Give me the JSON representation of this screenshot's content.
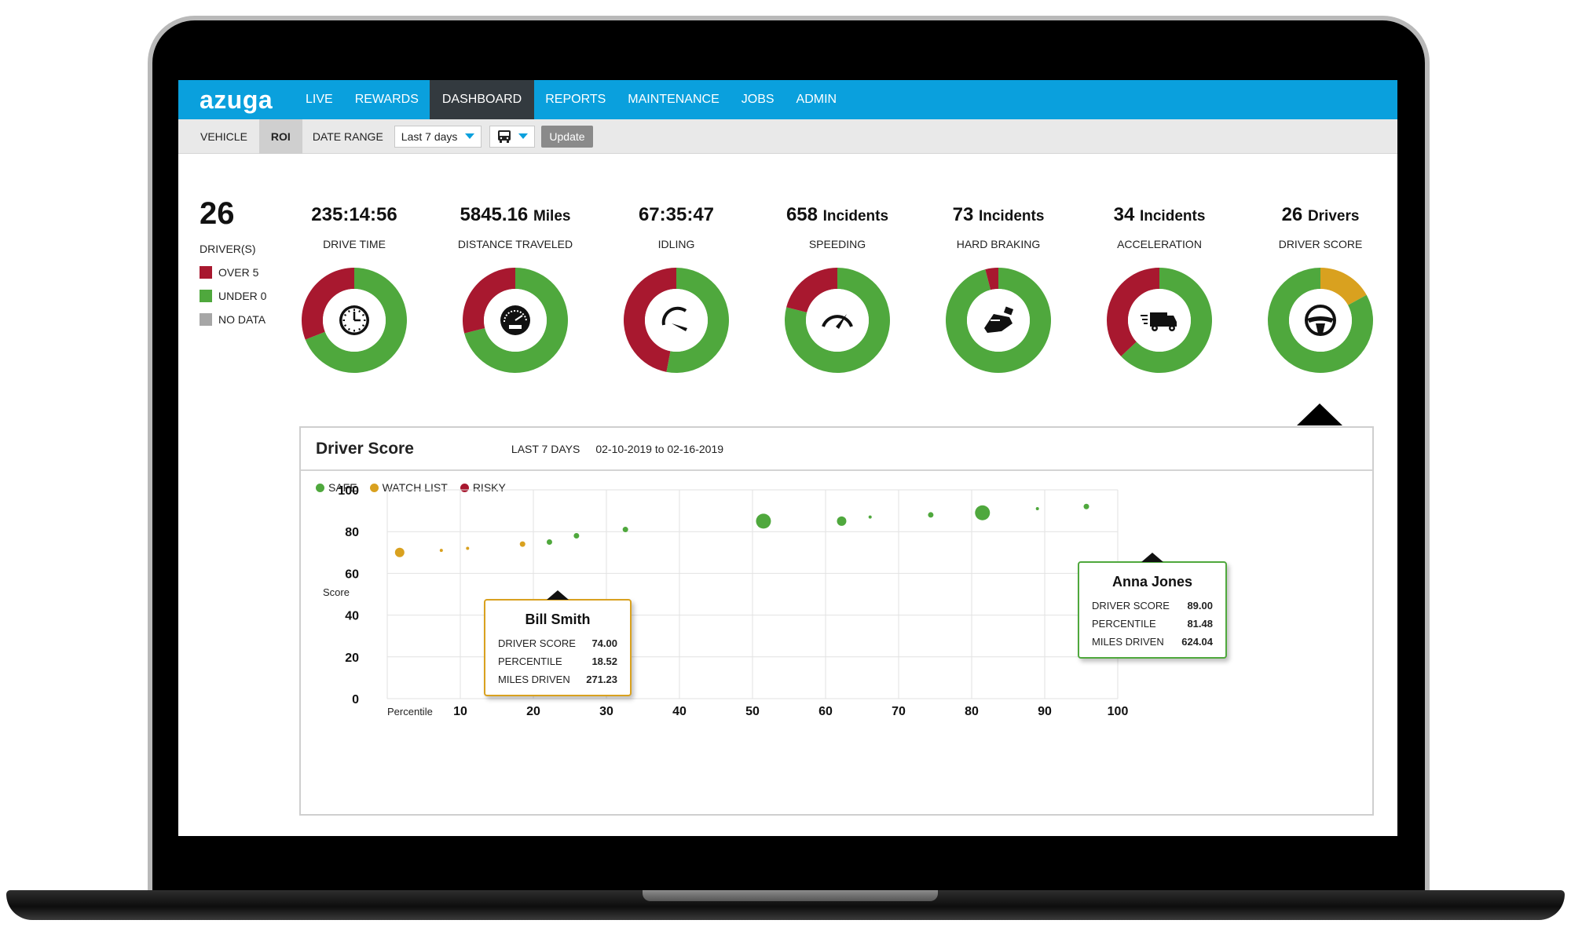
{
  "app": {
    "logo": "azuga"
  },
  "nav": {
    "items": [
      "LIVE",
      "REWARDS",
      "DASHBOARD",
      "REPORTS",
      "MAINTENANCE",
      "JOBS",
      "ADMIN"
    ],
    "active": "DASHBOARD"
  },
  "subnav": {
    "vehicle": "VEHICLE",
    "roi": "ROI",
    "date_range_label": "DATE RANGE",
    "date_range_value": "Last 7 days",
    "update": "Update"
  },
  "summary": {
    "drivers_count": "26",
    "drivers_label": "DRIVER(S)",
    "legend": [
      {
        "label": "OVER 5",
        "color": "#a8182f"
      },
      {
        "label": "UNDER 0",
        "color": "#4fa83d"
      },
      {
        "label": "NO DATA",
        "color": "#a6a6a6"
      }
    ]
  },
  "stats": [
    {
      "value": "235:14:56",
      "unit": "",
      "label": "DRIVE TIME",
      "icon": "clock-icon",
      "red": 0.31,
      "amber": 0
    },
    {
      "value": "5845.16",
      "unit": "Miles",
      "label": "DISTANCE TRAVELED",
      "icon": "odometer-icon",
      "red": 0.29,
      "amber": 0
    },
    {
      "value": "67:35:47",
      "unit": "",
      "label": "IDLING",
      "icon": "gauge-low-icon",
      "red": 0.47,
      "amber": 0
    },
    {
      "value": "658",
      "unit": "Incidents",
      "label": "SPEEDING",
      "icon": "speedometer-icon",
      "red": 0.21,
      "amber": 0
    },
    {
      "value": "73",
      "unit": "Incidents",
      "label": "HARD BRAKING",
      "icon": "brake-pedal-icon",
      "red": 0.04,
      "amber": 0
    },
    {
      "value": "34",
      "unit": "Incidents",
      "label": "ACCELERATION",
      "icon": "speeding-truck-icon",
      "red": 0.37,
      "amber": 0
    },
    {
      "value": "26",
      "unit": "Drivers",
      "label": "DRIVER SCORE",
      "icon": "steering-wheel-icon",
      "red": 0,
      "amber": 0.17
    }
  ],
  "colors": {
    "red": "#a8182f",
    "green": "#4fa83d",
    "amber": "#d9a11f",
    "nav": "#0aa0dd"
  },
  "panel": {
    "title": "Driver Score",
    "range": "LAST 7 DAYS",
    "dates": "02-10-2019 to 02-16-2019",
    "legend": [
      {
        "label": "SAFE",
        "color": "#4fa83d"
      },
      {
        "label": "WATCH LIST",
        "color": "#d9a11f"
      },
      {
        "label": "RISKY",
        "color": "#a8182f"
      }
    ]
  },
  "chart_data": {
    "type": "scatter",
    "ylabel": "Score",
    "xlabel": "Percentile",
    "xlim": [
      0,
      100
    ],
    "ylim": [
      0,
      100
    ],
    "x_ticks": [
      10,
      20,
      30,
      40,
      50,
      60,
      70,
      80,
      90,
      100
    ],
    "y_ticks": [
      0,
      20,
      40,
      60,
      80,
      100
    ],
    "grid": true,
    "points": [
      {
        "x": 1.7,
        "y": 70,
        "size": "medium",
        "category": "WATCH LIST"
      },
      {
        "x": 7.4,
        "y": 71,
        "size": "tiny",
        "category": "WATCH LIST"
      },
      {
        "x": 11,
        "y": 72,
        "size": "tiny",
        "category": "WATCH LIST"
      },
      {
        "x": 18.52,
        "y": 74,
        "size": "small",
        "category": "WATCH LIST"
      },
      {
        "x": 22.2,
        "y": 75,
        "size": "small",
        "category": "SAFE"
      },
      {
        "x": 25.9,
        "y": 78,
        "size": "small",
        "category": "SAFE"
      },
      {
        "x": 32.6,
        "y": 81,
        "size": "small",
        "category": "SAFE"
      },
      {
        "x": 51.5,
        "y": 85,
        "size": "large",
        "category": "SAFE"
      },
      {
        "x": 62.2,
        "y": 85,
        "size": "medium",
        "category": "SAFE"
      },
      {
        "x": 66.1,
        "y": 87,
        "size": "tiny",
        "category": "SAFE"
      },
      {
        "x": 74.4,
        "y": 88,
        "size": "small",
        "category": "SAFE"
      },
      {
        "x": 81.48,
        "y": 89,
        "size": "large",
        "category": "SAFE"
      },
      {
        "x": 89,
        "y": 91,
        "size": "tiny",
        "category": "SAFE"
      },
      {
        "x": 95.7,
        "y": 92,
        "size": "small",
        "category": "SAFE"
      }
    ],
    "tooltips": [
      {
        "name": "Bill Smith",
        "score_label": "DRIVER SCORE",
        "score": "74.00",
        "percentile_label": "PERCENTILE",
        "percentile": "18.52",
        "miles_label": "MILES DRIVEN",
        "miles": "271.23",
        "category": "WATCH LIST"
      },
      {
        "name": "Anna Jones",
        "score_label": "DRIVER SCORE",
        "score": "89.00",
        "percentile_label": "PERCENTILE",
        "percentile": "81.48",
        "miles_label": "MILES DRIVEN",
        "miles": "624.04",
        "category": "SAFE"
      }
    ]
  }
}
